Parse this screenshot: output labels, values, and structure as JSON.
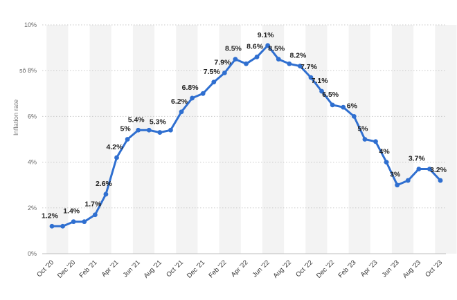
{
  "chart_data": {
    "type": "line",
    "ylabel": "Inflation rate",
    "ylim": [
      0,
      10
    ],
    "yticks": [
      "0%",
      "2%",
      "4%",
      "6%",
      "sô 8%",
      "10%"
    ],
    "grid": true,
    "x": [
      "Oct '20",
      "Nov '20",
      "Dec '20",
      "Jan '21",
      "Feb '21",
      "Mar '21",
      "Apr '21",
      "May '21",
      "Jun '21",
      "Jul '21",
      "Aug '21",
      "Sep '21",
      "Oct '21",
      "Nov '21",
      "Dec '21",
      "Jan '22",
      "Feb '22",
      "Mar '22",
      "Apr '22",
      "May '22",
      "Jun '22",
      "Jul '22",
      "Aug '22",
      "Sep '22",
      "Oct '22",
      "Nov '22",
      "Dec '22",
      "Jan '23",
      "Feb '23",
      "Mar '23",
      "Apr '23",
      "May '23",
      "Jun '23",
      "Jul '23",
      "Aug '23",
      "Sep '23",
      "Oct '23"
    ],
    "xtick_labels": [
      "Oct '20",
      "Dec '20",
      "Feb '21",
      "Apr '21",
      "Jun '21",
      "Aug '21",
      "Oct '21",
      "Dec '21",
      "Feb '22",
      "Apr '22",
      "Jun '22",
      "Aug '22",
      "Oct '22",
      "Dec '22",
      "Feb '23",
      "Apr '23",
      "Jun '23",
      "Aug '23",
      "Oct '23"
    ],
    "series": [
      {
        "values": [
          1.2,
          1.2,
          1.4,
          1.4,
          1.7,
          2.6,
          4.2,
          5.0,
          5.4,
          5.4,
          5.3,
          5.4,
          6.2,
          6.8,
          7.0,
          7.5,
          7.9,
          8.5,
          8.3,
          8.6,
          9.1,
          8.5,
          8.3,
          8.2,
          7.7,
          7.1,
          6.5,
          6.4,
          6.0,
          5.0,
          4.9,
          4.0,
          3.0,
          3.2,
          3.7,
          3.7,
          3.2
        ]
      }
    ],
    "data_labels": [
      {
        "index": 0,
        "text": "1.2%"
      },
      {
        "index": 2,
        "text": "1.4%"
      },
      {
        "index": 4,
        "text": "1.7%"
      },
      {
        "index": 5,
        "text": "2.6%"
      },
      {
        "index": 6,
        "text": "4.2%"
      },
      {
        "index": 7,
        "text": "5%"
      },
      {
        "index": 8,
        "text": "5.4%"
      },
      {
        "index": 10,
        "text": "5.3%"
      },
      {
        "index": 12,
        "text": "6.2%"
      },
      {
        "index": 13,
        "text": "6.8%"
      },
      {
        "index": 15,
        "text": "7.5%"
      },
      {
        "index": 16,
        "text": "7.9%"
      },
      {
        "index": 17,
        "text": "8.5%"
      },
      {
        "index": 19,
        "text": "8.6%"
      },
      {
        "index": 20,
        "text": "9.1%"
      },
      {
        "index": 21,
        "text": "8.5%"
      },
      {
        "index": 23,
        "text": "8.2%"
      },
      {
        "index": 24,
        "text": "7.7%"
      },
      {
        "index": 25,
        "text": "7.1%"
      },
      {
        "index": 26,
        "text": "6.5%"
      },
      {
        "index": 28,
        "text": "6%"
      },
      {
        "index": 29,
        "text": "5%"
      },
      {
        "index": 31,
        "text": "4%"
      },
      {
        "index": 32,
        "text": "3%"
      },
      {
        "index": 34,
        "text": "3.7%"
      },
      {
        "index": 36,
        "text": "3.2%"
      }
    ],
    "colors": {
      "line": "#2f6fd0",
      "stripe": "#f3f3f3",
      "grid": "#c8c8c8"
    }
  }
}
